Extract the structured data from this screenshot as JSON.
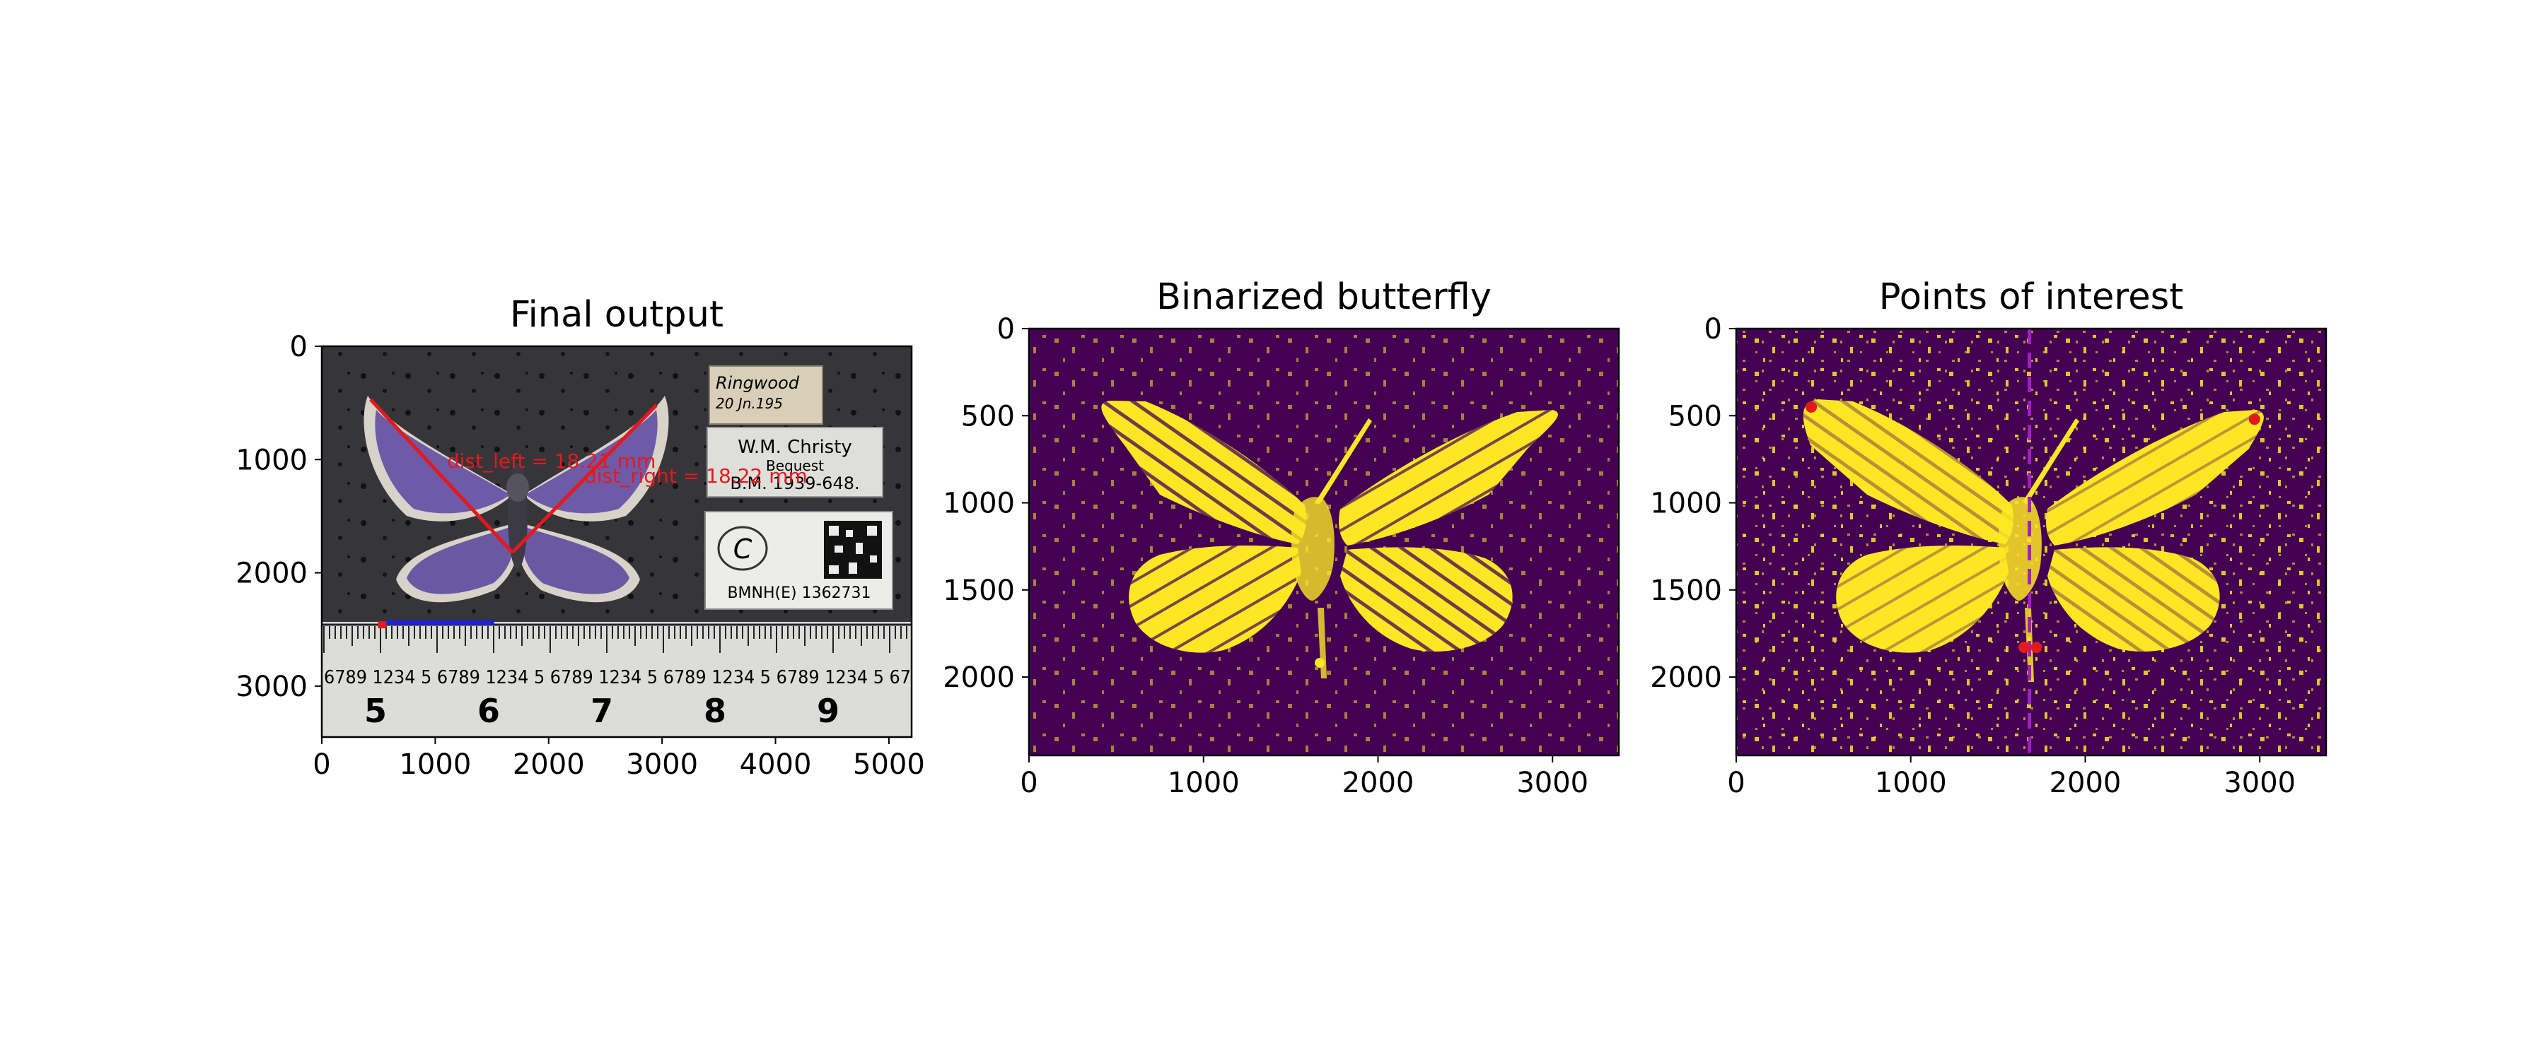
{
  "colors": {
    "background": "#ffffff",
    "viridis_low": "#440154",
    "viridis_high": "#fde725",
    "annotation_red": "#e31a1c",
    "scale_blue": "#1f1fe0",
    "midline_purple": "#a020c0",
    "photo_background": "#35353a",
    "wing_blue": "#6f5aa8",
    "ruler_paper": "#dcdcda"
  },
  "panels": [
    {
      "title": "Final output",
      "content": "photograph",
      "x_ticks": [
        "0",
        "1000",
        "2000",
        "3000",
        "4000",
        "5000"
      ],
      "y_ticks": [
        "0",
        "1000",
        "2000",
        "3000"
      ],
      "annotations": {
        "dist_left": "dist_left = 18.21 mm",
        "dist_right": "dist_right = 18.22 mm"
      },
      "labels": {
        "label1_line1": "Ringwood",
        "label1_line2": "20 Jn.195",
        "label2_line1": "W.M. Christy",
        "label2_line2": "Bequest",
        "label2_line3": "B.M. 1939-648.",
        "label3_logo": "C",
        "label3_id": "BMNH(E) 1362731"
      },
      "ruler_numbers": [
        "5",
        "6",
        "7",
        "8",
        "9"
      ],
      "ruler_digits": "6789 1234 5 6789 1234 5 6789 1234 5 6789 1234 5 6789 1234 5 67"
    },
    {
      "title": "Binarized butterfly",
      "content": "binary-mask",
      "x_ticks": [
        "0",
        "1000",
        "2000",
        "3000"
      ],
      "y_ticks": [
        "0",
        "500",
        "1000",
        "1500",
        "2000"
      ]
    },
    {
      "title": "Points of interest",
      "content": "binary-mask-with-points",
      "x_ticks": [
        "0",
        "1000",
        "2000",
        "3000"
      ],
      "y_ticks": [
        "0",
        "500",
        "1000",
        "1500",
        "2000"
      ]
    }
  ],
  "chart_data": [
    {
      "type": "image",
      "title": "Final output",
      "xlim": [
        0,
        5200
      ],
      "ylim": [
        3450,
        0
      ],
      "x_ticks": [
        0,
        1000,
        2000,
        3000,
        4000,
        5000
      ],
      "y_ticks": [
        0,
        1000,
        2000,
        3000
      ],
      "wing_lines": [
        {
          "name": "left",
          "points": [
            [
              430,
              470
            ],
            [
              1680,
              1820
            ]
          ]
        },
        {
          "name": "right",
          "points": [
            [
              1680,
              1820
            ],
            [
              2950,
              520
            ]
          ]
        }
      ],
      "scale_bar": {
        "x": [
          520,
          1520
        ],
        "y": 2440
      },
      "annotations": [
        "dist_left = 18.21 mm",
        "dist_right = 18.22 mm"
      ]
    },
    {
      "type": "image",
      "title": "Binarized butterfly",
      "xlim": [
        0,
        3380
      ],
      "ylim": [
        2450,
        0
      ],
      "x_ticks": [
        0,
        1000,
        2000,
        3000
      ],
      "y_ticks": [
        0,
        500,
        1000,
        1500,
        2000
      ]
    },
    {
      "type": "image",
      "title": "Points of interest",
      "xlim": [
        0,
        3380
      ],
      "ylim": [
        2450,
        0
      ],
      "x_ticks": [
        0,
        1000,
        2000,
        3000
      ],
      "y_ticks": [
        0,
        500,
        1000,
        1500,
        2000
      ],
      "midline_x": 1680,
      "points": [
        [
          430,
          450
        ],
        [
          2970,
          520
        ],
        [
          1650,
          1830
        ],
        [
          1720,
          1830
        ]
      ]
    }
  ]
}
